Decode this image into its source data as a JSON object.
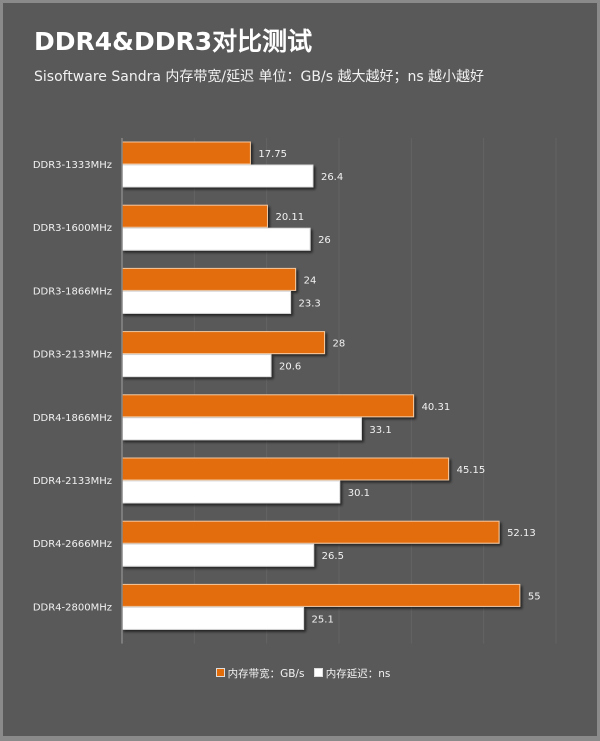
{
  "title": "DDR4&DDR3对比测试",
  "subtitle": "Sisoftware Sandra 内存带宽/延迟    单位：GB/s 越大越好；ns 越小越好",
  "colors": {
    "background": "#595959",
    "bandwidth": "#e36c0a",
    "latency": "#ffffff"
  },
  "chart_data": {
    "type": "bar",
    "orientation": "horizontal",
    "title": "DDR4&DDR3对比测试",
    "categories": [
      "DDR3-1333MHz",
      "DDR3-1600MHz",
      "DDR3-1866MHz",
      "DDR3-2133MHz",
      "DDR4-1866MHz",
      "DDR4-2133MHz",
      "DDR4-2666MHz",
      "DDR4-2800MHz"
    ],
    "series": [
      {
        "name": "内存带宽：GB/s",
        "color": "#e36c0a",
        "values": [
          17.75,
          20.11,
          24,
          28,
          40.31,
          45.15,
          52.13,
          55
        ]
      },
      {
        "name": "内存延迟：ns",
        "color": "#ffffff",
        "values": [
          26.4,
          26,
          23.3,
          20.6,
          33.1,
          30.1,
          26.5,
          25.1
        ]
      }
    ],
    "data_labels": [
      [
        "17.75",
        "20.11",
        "24",
        "28",
        "40.31",
        "45.15",
        "52.13",
        "55"
      ],
      [
        "26.4",
        "26",
        "23.3",
        "20.6",
        "33.1",
        "30.1",
        "26.5",
        "25.1"
      ]
    ],
    "xlim": [
      0,
      60
    ],
    "grid": true,
    "legend": "bottom"
  }
}
